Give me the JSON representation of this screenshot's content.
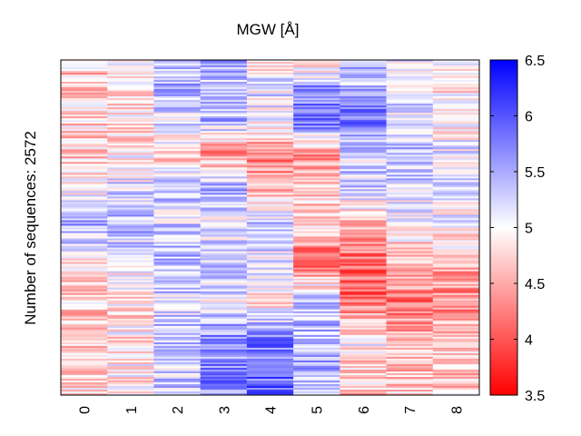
{
  "chart_data": {
    "type": "heatmap",
    "title": "MGW [Å]",
    "xlabel": "",
    "ylabel": "Number of sequences: 2572",
    "columns": [
      "0",
      "1",
      "2",
      "3",
      "4",
      "5",
      "6",
      "7",
      "8"
    ],
    "n_rows": 2572,
    "colorbar": {
      "min": 3.5,
      "max": 6.5,
      "ticks": [
        "3.5",
        "4",
        "4.5",
        "5",
        "5.5",
        "6",
        "6.5"
      ],
      "low_color": "#ff0000",
      "mid_color": "#ffffff",
      "high_color": "#0000ff"
    },
    "band_profile_rows_top_to_bottom": [
      {
        "row_fraction": 0.0,
        "values": [
          4.75,
          4.95,
          5.45,
          5.45,
          4.85,
          4.65,
          5.45,
          5.05,
          4.9
        ]
      },
      {
        "row_fraction": 0.08,
        "values": [
          4.65,
          4.85,
          5.4,
          5.3,
          5.15,
          5.65,
          5.5,
          5.15,
          4.8
        ]
      },
      {
        "row_fraction": 0.18,
        "values": [
          4.75,
          4.85,
          5.2,
          5.4,
          5.1,
          5.85,
          5.85,
          5.2,
          4.9
        ]
      },
      {
        "row_fraction": 0.28,
        "values": [
          4.7,
          4.85,
          4.75,
          4.35,
          4.25,
          4.35,
          5.2,
          5.35,
          5.15
        ]
      },
      {
        "row_fraction": 0.38,
        "values": [
          4.85,
          5.2,
          5.3,
          5.5,
          4.55,
          4.65,
          5.3,
          5.2,
          5.05
        ]
      },
      {
        "row_fraction": 0.48,
        "values": [
          5.65,
          5.5,
          5.25,
          5.1,
          5.35,
          4.75,
          4.65,
          5.05,
          5.1
        ]
      },
      {
        "row_fraction": 0.6,
        "values": [
          4.8,
          5.1,
          5.45,
          5.3,
          5.15,
          4.1,
          4.15,
          4.55,
          4.55
        ]
      },
      {
        "row_fraction": 0.72,
        "values": [
          4.7,
          4.85,
          5.25,
          5.15,
          4.8,
          5.3,
          4.15,
          4.25,
          4.35
        ]
      },
      {
        "row_fraction": 0.84,
        "values": [
          4.75,
          4.9,
          5.35,
          5.65,
          5.8,
          5.45,
          4.95,
          4.45,
          4.6
        ]
      },
      {
        "row_fraction": 1.0,
        "values": [
          4.8,
          4.95,
          5.25,
          5.7,
          5.9,
          5.4,
          4.6,
          4.7,
          4.75
        ]
      }
    ],
    "grid": false,
    "legend": "colorbar-right"
  }
}
